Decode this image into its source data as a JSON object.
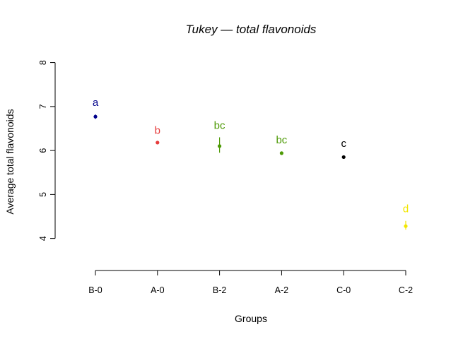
{
  "chart_data": {
    "type": "scatter",
    "title": "Tukey — total flavonoids",
    "xlabel": "Groups",
    "ylabel": "Average total flavonoids",
    "ylim": [
      3.4,
      8.7
    ],
    "yticks": [
      4,
      5,
      6,
      7,
      8
    ],
    "categories": [
      "B-0",
      "A-0",
      "B-2",
      "A-2",
      "C-0",
      "C-2"
    ],
    "points": [
      {
        "group": "B-0",
        "mean": 6.77,
        "lower": 6.72,
        "upper": 6.82,
        "letter": "a",
        "color": "#00008B"
      },
      {
        "group": "A-0",
        "mean": 6.18,
        "lower": 6.17,
        "upper": 6.19,
        "letter": "b",
        "color": "#E63B3B"
      },
      {
        "group": "B-2",
        "mean": 6.1,
        "lower": 5.95,
        "upper": 6.3,
        "letter": "bc",
        "color": "#4E9A06"
      },
      {
        "group": "A-2",
        "mean": 5.94,
        "lower": 5.91,
        "upper": 5.97,
        "letter": "bc",
        "color": "#4E9A06"
      },
      {
        "group": "C-0",
        "mean": 5.85,
        "lower": 5.81,
        "upper": 5.89,
        "letter": "c",
        "color": "#000000"
      },
      {
        "group": "C-2",
        "mean": 4.28,
        "lower": 4.2,
        "upper": 4.4,
        "letter": "d",
        "color": "#F2E600"
      }
    ],
    "grid": false,
    "legend": "none"
  }
}
